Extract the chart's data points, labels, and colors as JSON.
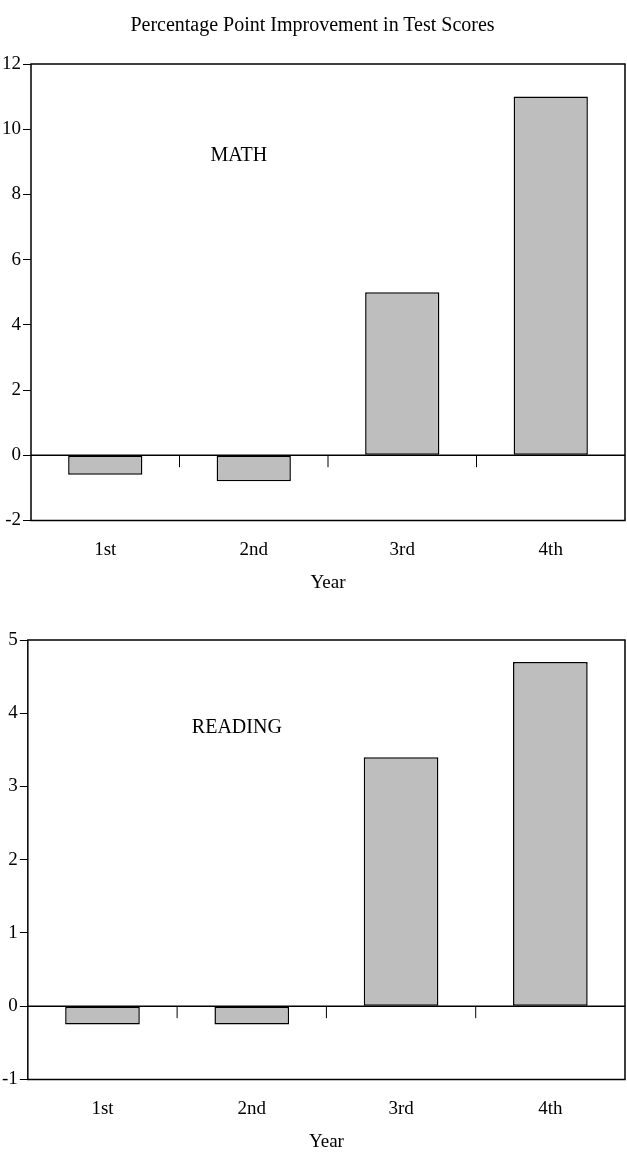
{
  "chart_data": [
    {
      "type": "bar",
      "title": "Percentage Point Improvement in Test Scores",
      "xlabel": "Year",
      "annotations": [
        "MATH"
      ],
      "categories": [
        "1st",
        "2nd",
        "3rd",
        "4th"
      ],
      "values": [
        -0.6,
        -0.8,
        5,
        11
      ],
      "color": "#bebebe",
      "ylim": [
        -2,
        12
      ],
      "yticks": [
        -2,
        0,
        2,
        4,
        6,
        8,
        10,
        12
      ]
    },
    {
      "type": "bar",
      "xlabel": "Year",
      "annotations": [
        "READING"
      ],
      "categories": [
        "1st",
        "2nd",
        "3rd",
        "4th"
      ],
      "values": [
        -0.25,
        -0.25,
        3.4,
        4.7
      ],
      "color": "#bebebe",
      "ylim": [
        -1,
        5
      ],
      "yticks": [
        -1,
        0,
        1,
        2,
        3,
        4,
        5
      ]
    }
  ]
}
